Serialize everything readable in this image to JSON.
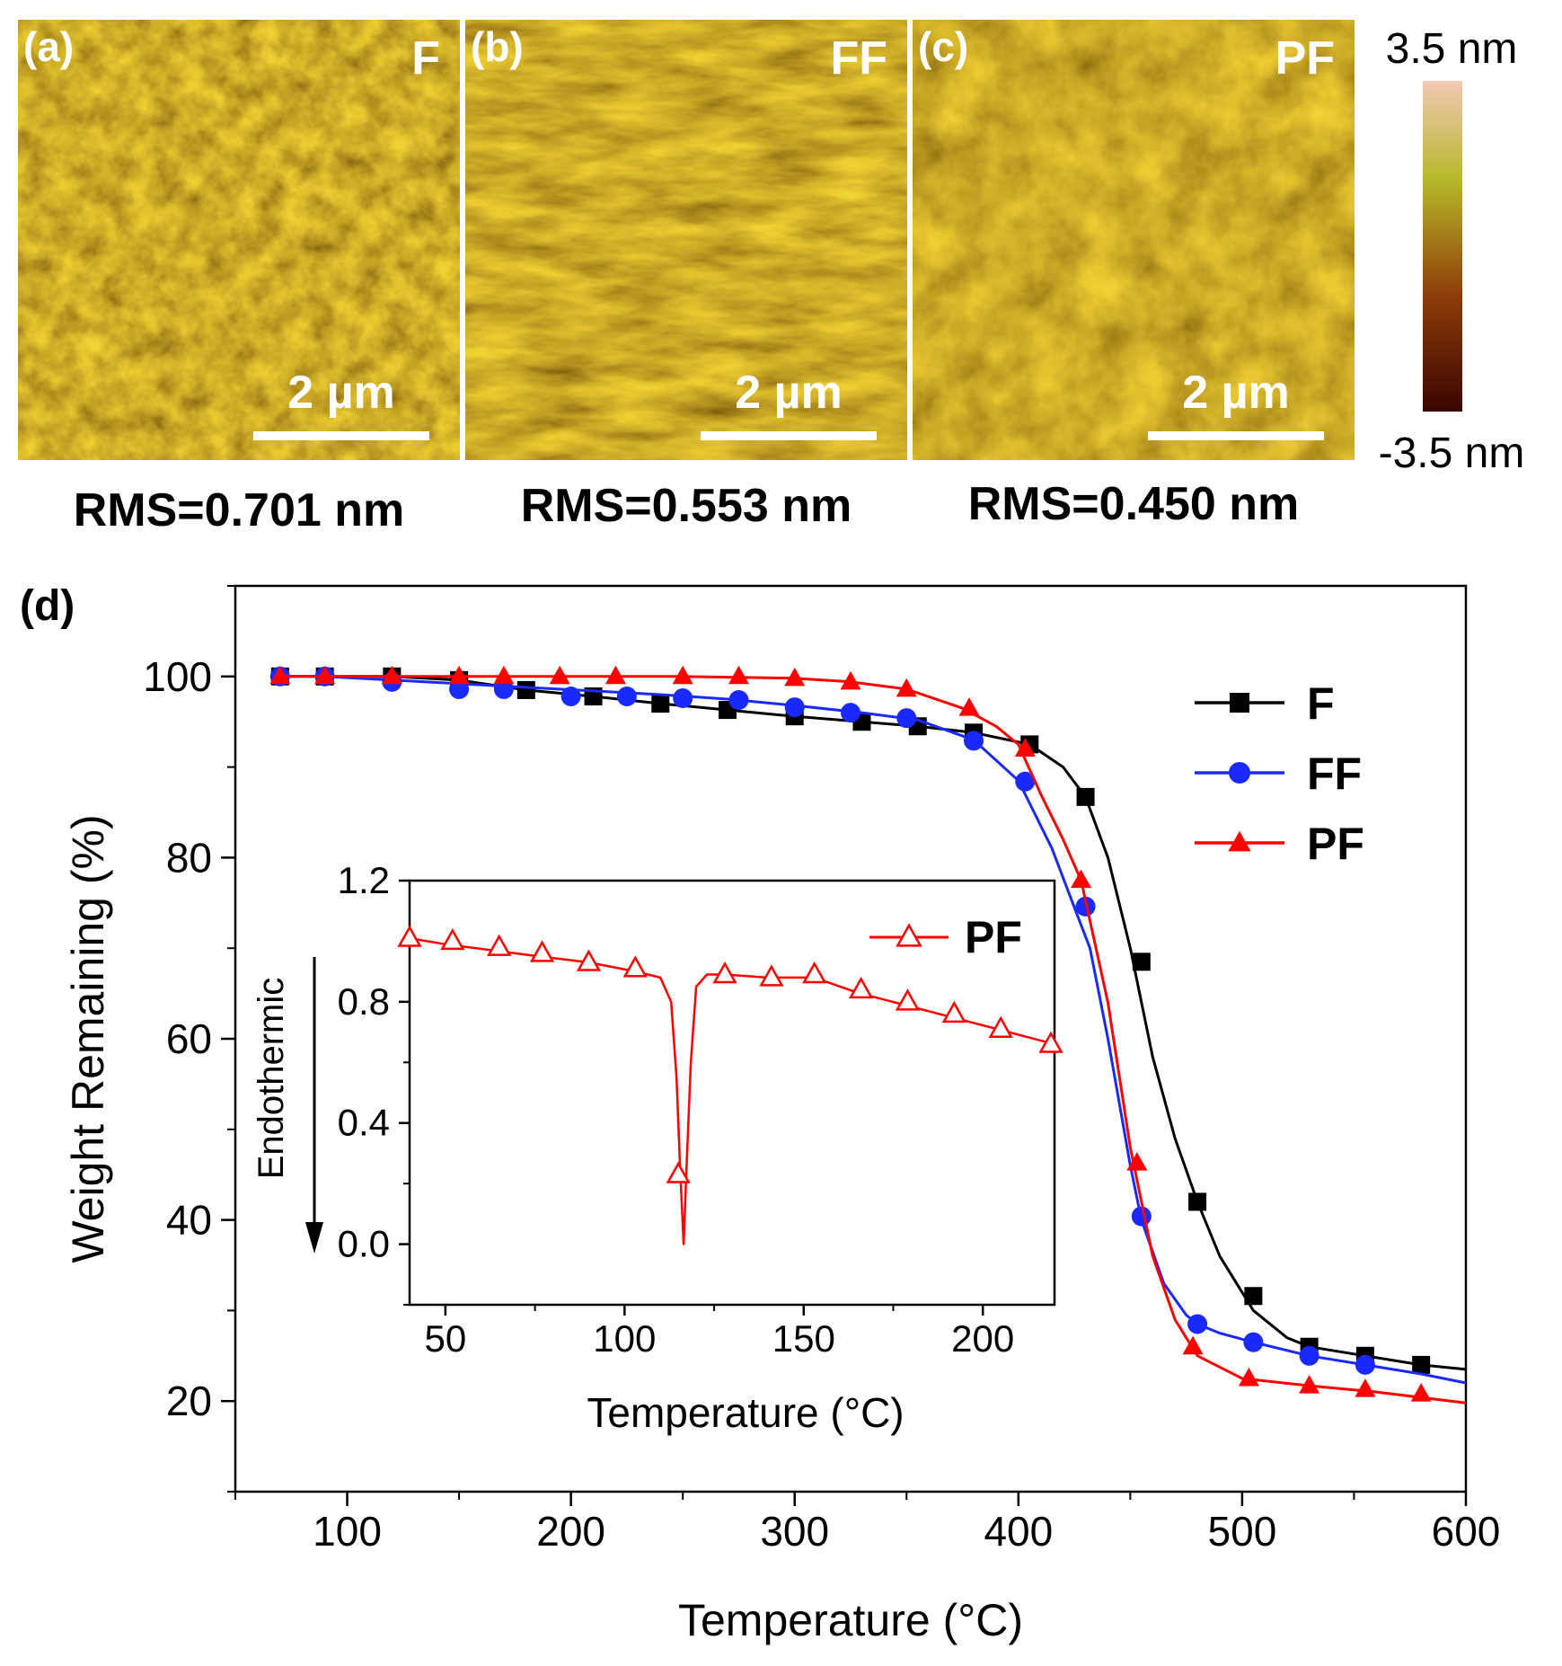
{
  "afm_panels": [
    {
      "letter": "(a)",
      "sample": "F",
      "scale_bar": "2 µm",
      "rms": "RMS=0.701 nm"
    },
    {
      "letter": "(b)",
      "sample": "FF",
      "scale_bar": "2 µm",
      "rms": "RMS=0.553 nm"
    },
    {
      "letter": "(c)",
      "sample": "PF",
      "scale_bar": "2 µm",
      "rms": "RMS=0.450 nm"
    }
  ],
  "colorbar": {
    "max_label": "3.5 nm",
    "min_label": "-3.5 nm",
    "colors": [
      "#f2c8b4",
      "#b7b82a",
      "#8e3d08",
      "#3a0502"
    ]
  },
  "colors": {
    "F": "#000000",
    "FF": "#1a2aff",
    "PF": "#ff0000",
    "afm_base": "#8a5a12"
  },
  "chart_data": [
    {
      "type": "line",
      "panel": "(d)",
      "title": "",
      "xlabel": "Temperature (°C)",
      "ylabel": "Weight Remaining (%)",
      "xlim": [
        50,
        600
      ],
      "ylim": [
        10,
        110
      ],
      "xticks": [
        100,
        200,
        300,
        400,
        500,
        600
      ],
      "yticks": [
        20,
        40,
        60,
        80,
        100
      ],
      "legend_position": "top-right",
      "series": [
        {
          "name": "F",
          "marker": "square",
          "color": "#000000",
          "x": [
            70,
            90,
            120,
            150,
            180,
            210,
            240,
            270,
            300,
            330,
            355,
            380,
            405,
            420,
            430,
            440,
            450,
            460,
            470,
            480,
            490,
            505,
            520,
            530,
            555,
            580,
            600
          ],
          "y": [
            100,
            100,
            100,
            99.6,
            98.5,
            97.8,
            97.0,
            96.3,
            95.6,
            95.0,
            94.5,
            93.8,
            92.5,
            90.0,
            86.7,
            80.0,
            70.0,
            58.0,
            49.0,
            42.0,
            36.0,
            30.0,
            27.0,
            26.0,
            25.0,
            24.0,
            23.5
          ],
          "marker_x": [
            70,
            90,
            120,
            150,
            180,
            210,
            240,
            270,
            300,
            330,
            355,
            380,
            405,
            430,
            455,
            480,
            505,
            530,
            555,
            580
          ],
          "marker_y": [
            100,
            100,
            100,
            99.6,
            98.5,
            97.8,
            97.0,
            96.3,
            95.6,
            95.0,
            94.5,
            93.8,
            92.5,
            86.7,
            68.5,
            42.0,
            31.6,
            26.0,
            25.0,
            24.0
          ]
        },
        {
          "name": "FF",
          "marker": "circle",
          "color": "#1a2aff",
          "x": [
            70,
            90,
            120,
            150,
            180,
            210,
            240,
            270,
            300,
            330,
            355,
            380,
            400,
            415,
            425,
            432,
            440,
            450,
            455,
            465,
            475,
            480,
            490,
            505,
            530,
            555,
            580,
            600
          ],
          "y": [
            100,
            100,
            99.6,
            99.2,
            98.8,
            98.4,
            98.0,
            97.5,
            96.8,
            96.0,
            95.2,
            93.0,
            88.5,
            81.0,
            74.5,
            70.0,
            60.0,
            46.0,
            40.0,
            33.0,
            29.5,
            28.5,
            27.5,
            26.5,
            25.0,
            24.0,
            23.0,
            22.0
          ],
          "marker_x": [
            70,
            90,
            120,
            150,
            170,
            200,
            225,
            250,
            275,
            300,
            325,
            350,
            380,
            403,
            430,
            455,
            480,
            505,
            530,
            555
          ],
          "marker_y": [
            100,
            100,
            99.4,
            98.6,
            98.6,
            97.8,
            97.8,
            97.6,
            97.4,
            96.6,
            96.0,
            95.4,
            92.9,
            88.4,
            74.6,
            40.4,
            28.5,
            26.5,
            25.0,
            24.0
          ]
        },
        {
          "name": "PF",
          "marker": "triangle",
          "color": "#ff0000",
          "x": [
            70,
            90,
            120,
            150,
            200,
            250,
            300,
            325,
            350,
            375,
            390,
            400,
            410,
            420,
            428,
            440,
            450,
            460,
            470,
            480,
            500,
            530,
            560,
            600
          ],
          "y": [
            100,
            100,
            100,
            100,
            100,
            100,
            99.8,
            99.4,
            98.6,
            96.5,
            94.5,
            92.5,
            87.0,
            82.0,
            77.5,
            64.0,
            48.0,
            36.0,
            29.0,
            25.0,
            22.5,
            21.7,
            21.0,
            19.8
          ],
          "marker_x": [
            70,
            90,
            120,
            150,
            170,
            195,
            220,
            250,
            275,
            300,
            325,
            350,
            378,
            403,
            428,
            453,
            478,
            503,
            530,
            555,
            580
          ],
          "marker_y": [
            100,
            100,
            100,
            100,
            100,
            100,
            100,
            100,
            100,
            99.8,
            99.4,
            98.6,
            96.5,
            92.0,
            77.5,
            46.3,
            26.0,
            22.5,
            21.7,
            21.3,
            20.8
          ]
        }
      ],
      "legend": [
        "F",
        "FF",
        "PF"
      ]
    },
    {
      "type": "line",
      "panel": "inset",
      "title": "",
      "xlabel": "Temperature (°C)",
      "ylabel": "Endothermic",
      "xlim": [
        40,
        220
      ],
      "ylim": [
        -0.2,
        1.2
      ],
      "xticks": [
        50,
        100,
        150,
        200
      ],
      "yticks": [
        0.0,
        0.4,
        0.8,
        1.2
      ],
      "y_tick_labels": [
        "0.0",
        "0.4",
        "0.8",
        "1.2"
      ],
      "legend_position": "top-right",
      "series": [
        {
          "name": "PF",
          "marker": "open-triangle",
          "color": "#ff0000",
          "x": [
            40,
            50,
            63,
            76,
            90,
            103,
            110,
            113,
            114.5,
            115.5,
            116.5,
            117.3,
            118.5,
            120,
            123,
            128,
            140,
            153,
            165,
            178,
            191,
            204,
            220
          ],
          "y": [
            1.01,
            0.99,
            0.97,
            0.95,
            0.93,
            0.9,
            0.88,
            0.8,
            0.55,
            0.25,
            0.0,
            0.25,
            0.6,
            0.85,
            0.89,
            0.89,
            0.88,
            0.88,
            0.83,
            0.79,
            0.75,
            0.71,
            0.66
          ],
          "marker_x": [
            40,
            52,
            65,
            77,
            90,
            103,
            115,
            128,
            141,
            153,
            166,
            179,
            192,
            205,
            219
          ],
          "marker_y": [
            1.01,
            1.0,
            0.98,
            0.96,
            0.93,
            0.91,
            0.23,
            0.89,
            0.88,
            0.89,
            0.84,
            0.8,
            0.76,
            0.71,
            0.66
          ]
        }
      ],
      "legend": [
        "PF"
      ]
    }
  ]
}
